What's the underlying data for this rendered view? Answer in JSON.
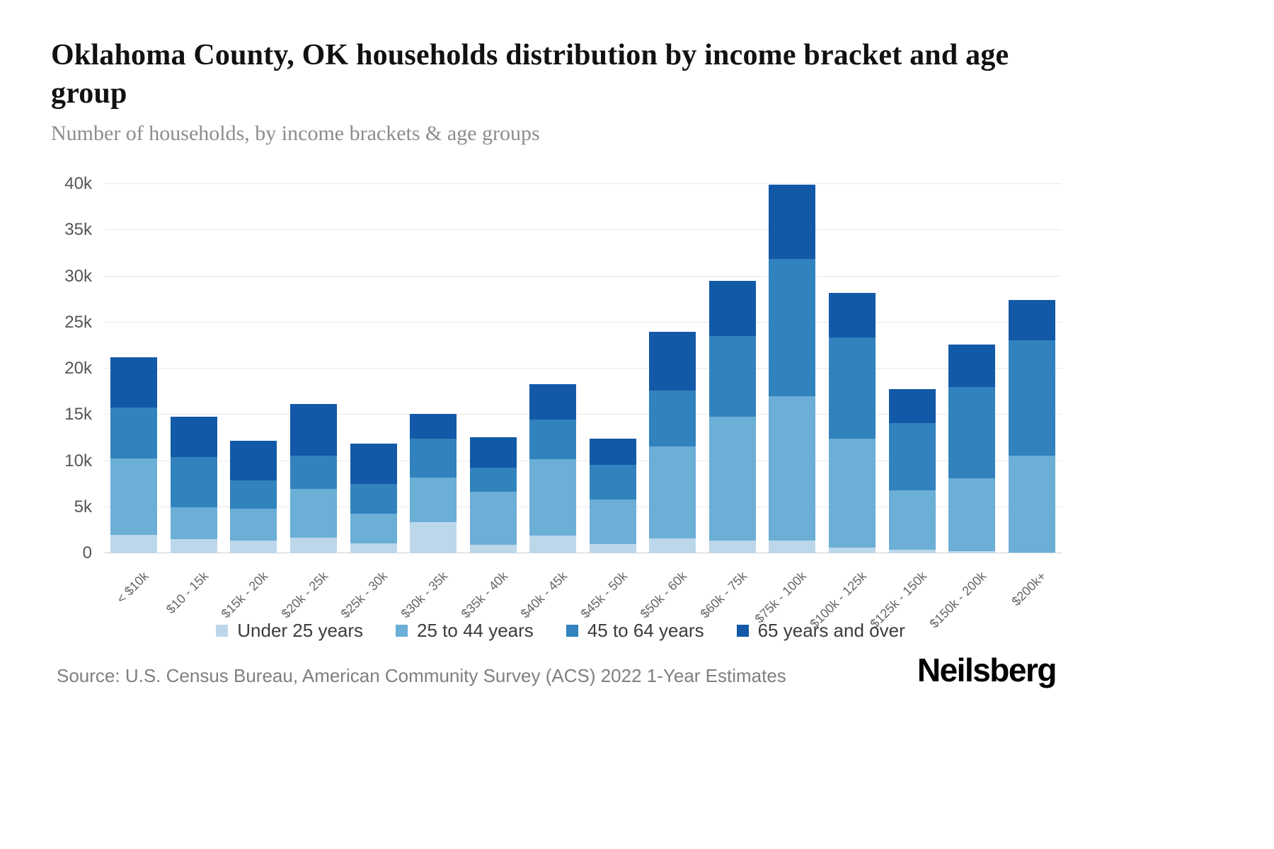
{
  "header": {
    "title": "Oklahoma County, OK households distribution by income bracket and age group",
    "subtitle": "Number of households, by income brackets & age groups"
  },
  "chart_data": {
    "type": "bar",
    "stacked": true,
    "title": "Oklahoma County, OK households distribution by income bracket and age group",
    "xlabel": "",
    "ylabel": "Number of households",
    "ylim": [
      0,
      40000
    ],
    "yticks": [
      "40k",
      "35k",
      "30k",
      "25k",
      "20k",
      "15k",
      "10k",
      "5k",
      "0"
    ],
    "ytick_values": [
      40000,
      35000,
      30000,
      25000,
      20000,
      15000,
      10000,
      5000,
      0
    ],
    "grid": true,
    "legend_position": "bottom",
    "categories": [
      "< $10k",
      "$10 - 15k",
      "$15k - 20k",
      "$20k - 25k",
      "$25k - 30k",
      "$30k - 35k",
      "$35k - 40k",
      "$40k - 45k",
      "$45k - 50k",
      "$50k - 60k",
      "$60k - 75k",
      "$75k - 100k",
      "$100k - 125k",
      "$125k - 150k",
      "$150k - 200k",
      "$200k+"
    ],
    "series": [
      {
        "name": "Under 25 years",
        "color": "#bdd7ea",
        "values": [
          2000,
          1500,
          1400,
          1700,
          1100,
          3400,
          900,
          1900,
          1000,
          1600,
          1400,
          1400,
          600,
          400,
          200,
          100
        ]
      },
      {
        "name": "25 to 44 years",
        "color": "#6baed6",
        "values": [
          8300,
          3500,
          3400,
          5300,
          3200,
          4800,
          5800,
          8300,
          4800,
          10000,
          13400,
          15600,
          11800,
          6400,
          7900,
          10500
        ]
      },
      {
        "name": "45 to 64 years",
        "color": "#3182bd",
        "values": [
          5500,
          5400,
          3100,
          3600,
          3200,
          4200,
          2600,
          4300,
          3800,
          6000,
          8700,
          14900,
          11000,
          7300,
          9900,
          12500
        ]
      },
      {
        "name": "65 years and over",
        "color": "#1259a8",
        "values": [
          5400,
          4400,
          4300,
          5600,
          4400,
          2700,
          3300,
          3800,
          2800,
          6400,
          6000,
          8000,
          4800,
          3700,
          4600,
          4300
        ]
      }
    ],
    "totals": [
      21200,
      14800,
      12200,
      16200,
      11900,
      15100,
      12600,
      18300,
      12400,
      24000,
      29500,
      39900,
      28200,
      17800,
      22600,
      27400
    ]
  },
  "footer": {
    "source": "Source: U.S. Census Bureau, American Community Survey (ACS) 2022 1-Year Estimates",
    "brand": "Neilsberg"
  }
}
